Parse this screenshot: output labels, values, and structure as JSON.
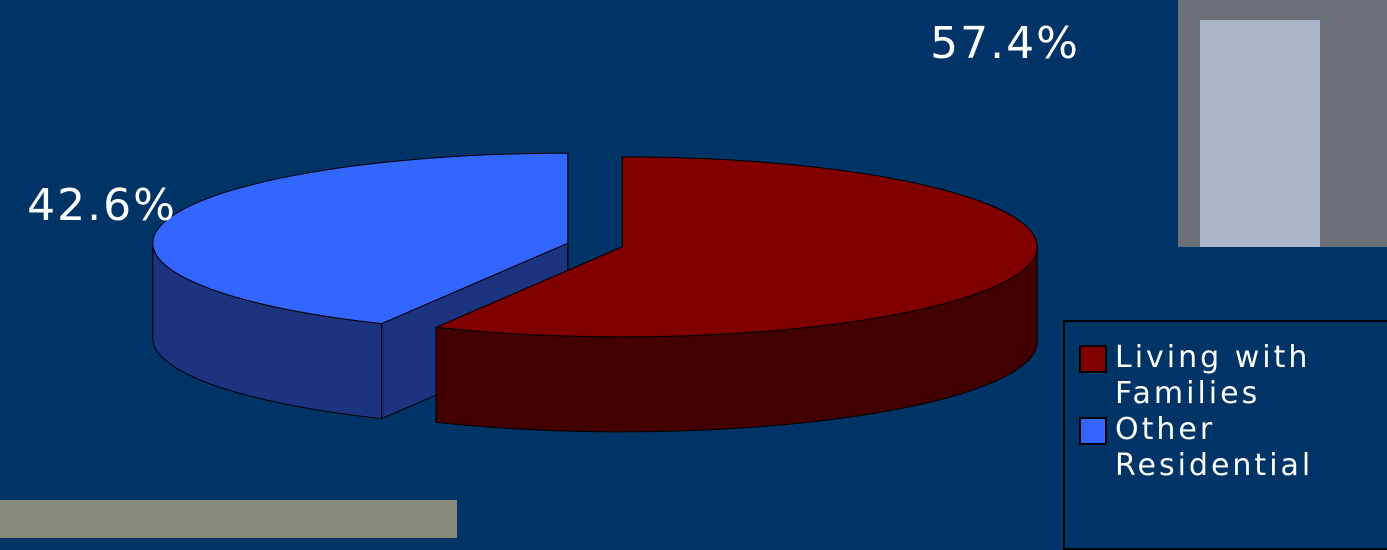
{
  "chart_data": {
    "type": "pie",
    "categories": [
      "Living with Families",
      "Other Residential"
    ],
    "values": [
      57.4,
      42.6
    ],
    "value_labels": [
      "57.4%",
      "42.6%"
    ],
    "colors": [
      "#800000",
      "#3366ff"
    ],
    "side_colors": [
      "#430000",
      "#1c3480"
    ]
  }
}
